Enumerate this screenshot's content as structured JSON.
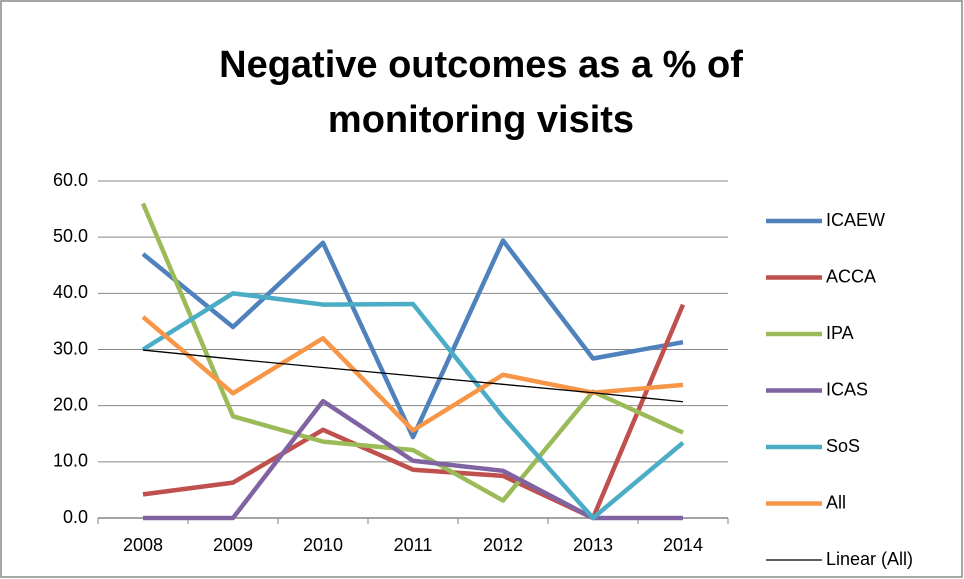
{
  "chart_data": {
    "type": "line",
    "title": "Negative outcomes as a % of monitoring visits",
    "categories": [
      "2008",
      "2009",
      "2010",
      "2011",
      "2012",
      "2013",
      "2014"
    ],
    "series": [
      {
        "name": "ICAEW",
        "color": "#4f81bd",
        "values": [
          47.0,
          34.0,
          49.0,
          14.4,
          49.4,
          28.4,
          31.3
        ]
      },
      {
        "name": "ACCA",
        "color": "#c0504d",
        "values": [
          4.2,
          6.3,
          15.7,
          8.6,
          7.5,
          0,
          38.0
        ]
      },
      {
        "name": "IPA",
        "color": "#9bbb59",
        "values": [
          56.0,
          18.1,
          13.6,
          12.1,
          3.1,
          22.5,
          15.2
        ]
      },
      {
        "name": "ICAS",
        "color": "#8064a2",
        "values": [
          0,
          0,
          20.8,
          10.2,
          8.4,
          0,
          0
        ]
      },
      {
        "name": "SoS",
        "color": "#4bacc6",
        "values": [
          30.0,
          40.0,
          38.0,
          38.1,
          18.0,
          0,
          13.4
        ]
      },
      {
        "name": "All",
        "color": "#f79646",
        "values": [
          35.8,
          22.2,
          32.0,
          15.6,
          25.5,
          22.3,
          23.7
        ]
      },
      {
        "name": "Linear (All)",
        "color": "#000000",
        "values": [
          29.9,
          28.3,
          26.8,
          25.3,
          23.8,
          22.3,
          20.7
        ]
      }
    ],
    "ylim": [
      0,
      60
    ],
    "yticks": [
      {
        "value": 0,
        "label": "0.0"
      },
      {
        "value": 10,
        "label": "10.0"
      },
      {
        "value": 20,
        "label": "20.0"
      },
      {
        "value": 30,
        "label": "30.0"
      },
      {
        "value": 40,
        "label": "40.0"
      },
      {
        "value": 50,
        "label": "50.0"
      },
      {
        "value": 60,
        "label": "60.0"
      }
    ],
    "grid": true,
    "legend": "right"
  }
}
